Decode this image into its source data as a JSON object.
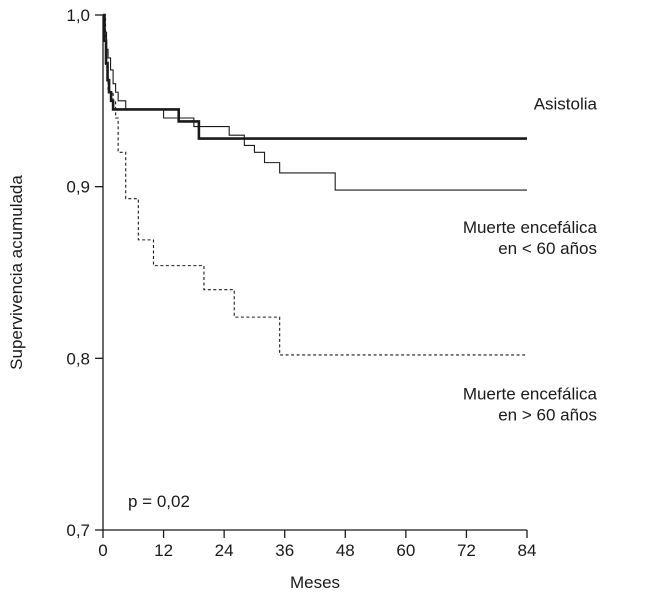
{
  "chart_data": {
    "type": "line",
    "title": "",
    "xlabel": "Meses",
    "ylabel": "Supervivencia acumulada",
    "xlim": [
      0,
      84
    ],
    "ylim": [
      0.7,
      1.0
    ],
    "x_ticks": [
      0,
      12,
      24,
      36,
      48,
      60,
      72,
      84
    ],
    "y_ticks": [
      0.7,
      0.8,
      0.9,
      1.0
    ],
    "x_tick_labels": [
      "0",
      "12",
      "24",
      "36",
      "48",
      "60",
      "72",
      "84"
    ],
    "y_tick_labels": [
      "0,7",
      "0,8",
      "0,9",
      "1,0"
    ],
    "grid": false,
    "annotation": "p = 0,02",
    "series": [
      {
        "name": "Asistolia",
        "style": "thick-solid",
        "color": "#1a1a1a",
        "x": [
          0,
          0.3,
          0.6,
          0.9,
          1.2,
          1.6,
          2.0,
          3.0,
          9.0,
          15.0,
          19.0,
          84.0
        ],
        "y": [
          1.0,
          0.985,
          0.972,
          0.962,
          0.955,
          0.95,
          0.945,
          0.945,
          0.945,
          0.938,
          0.928,
          0.928
        ]
      },
      {
        "name": "Muerte encefálica en < 60 años",
        "style": "thin-solid",
        "color": "#1a1a1a",
        "x": [
          0,
          0.3,
          0.7,
          1.0,
          1.5,
          2.0,
          2.5,
          3.0,
          4.5,
          12.0,
          18.0,
          25.0,
          28.0,
          30.0,
          32.0,
          35.0,
          38.0,
          46.0,
          84.0
        ],
        "y": [
          1.0,
          0.99,
          0.98,
          0.975,
          0.968,
          0.96,
          0.955,
          0.95,
          0.945,
          0.94,
          0.935,
          0.93,
          0.924,
          0.92,
          0.914,
          0.908,
          0.908,
          0.898,
          0.898
        ]
      },
      {
        "name": "Muerte encefálica en > 60 años",
        "style": "dotted",
        "color": "#1a1a1a",
        "x": [
          0,
          0.5,
          1.0,
          2.0,
          2.5,
          3.0,
          4.5,
          7.0,
          10.0,
          15.0,
          20.0,
          26.0,
          35.0,
          84.0
        ],
        "y": [
          1.0,
          0.97,
          0.955,
          0.95,
          0.94,
          0.92,
          0.893,
          0.869,
          0.854,
          0.854,
          0.84,
          0.824,
          0.802,
          0.802
        ]
      }
    ],
    "series_labels": [
      {
        "lines": [
          "Asistolia"
        ],
        "anchor_y": 0.945,
        "align": "end"
      },
      {
        "lines": [
          "Muerte encefálica",
          "en < 60 años"
        ],
        "anchor_y": 0.873,
        "align": "end"
      },
      {
        "lines": [
          "Muerte encefálica",
          "en > 60 años"
        ],
        "anchor_y": 0.776,
        "align": "end"
      }
    ]
  }
}
